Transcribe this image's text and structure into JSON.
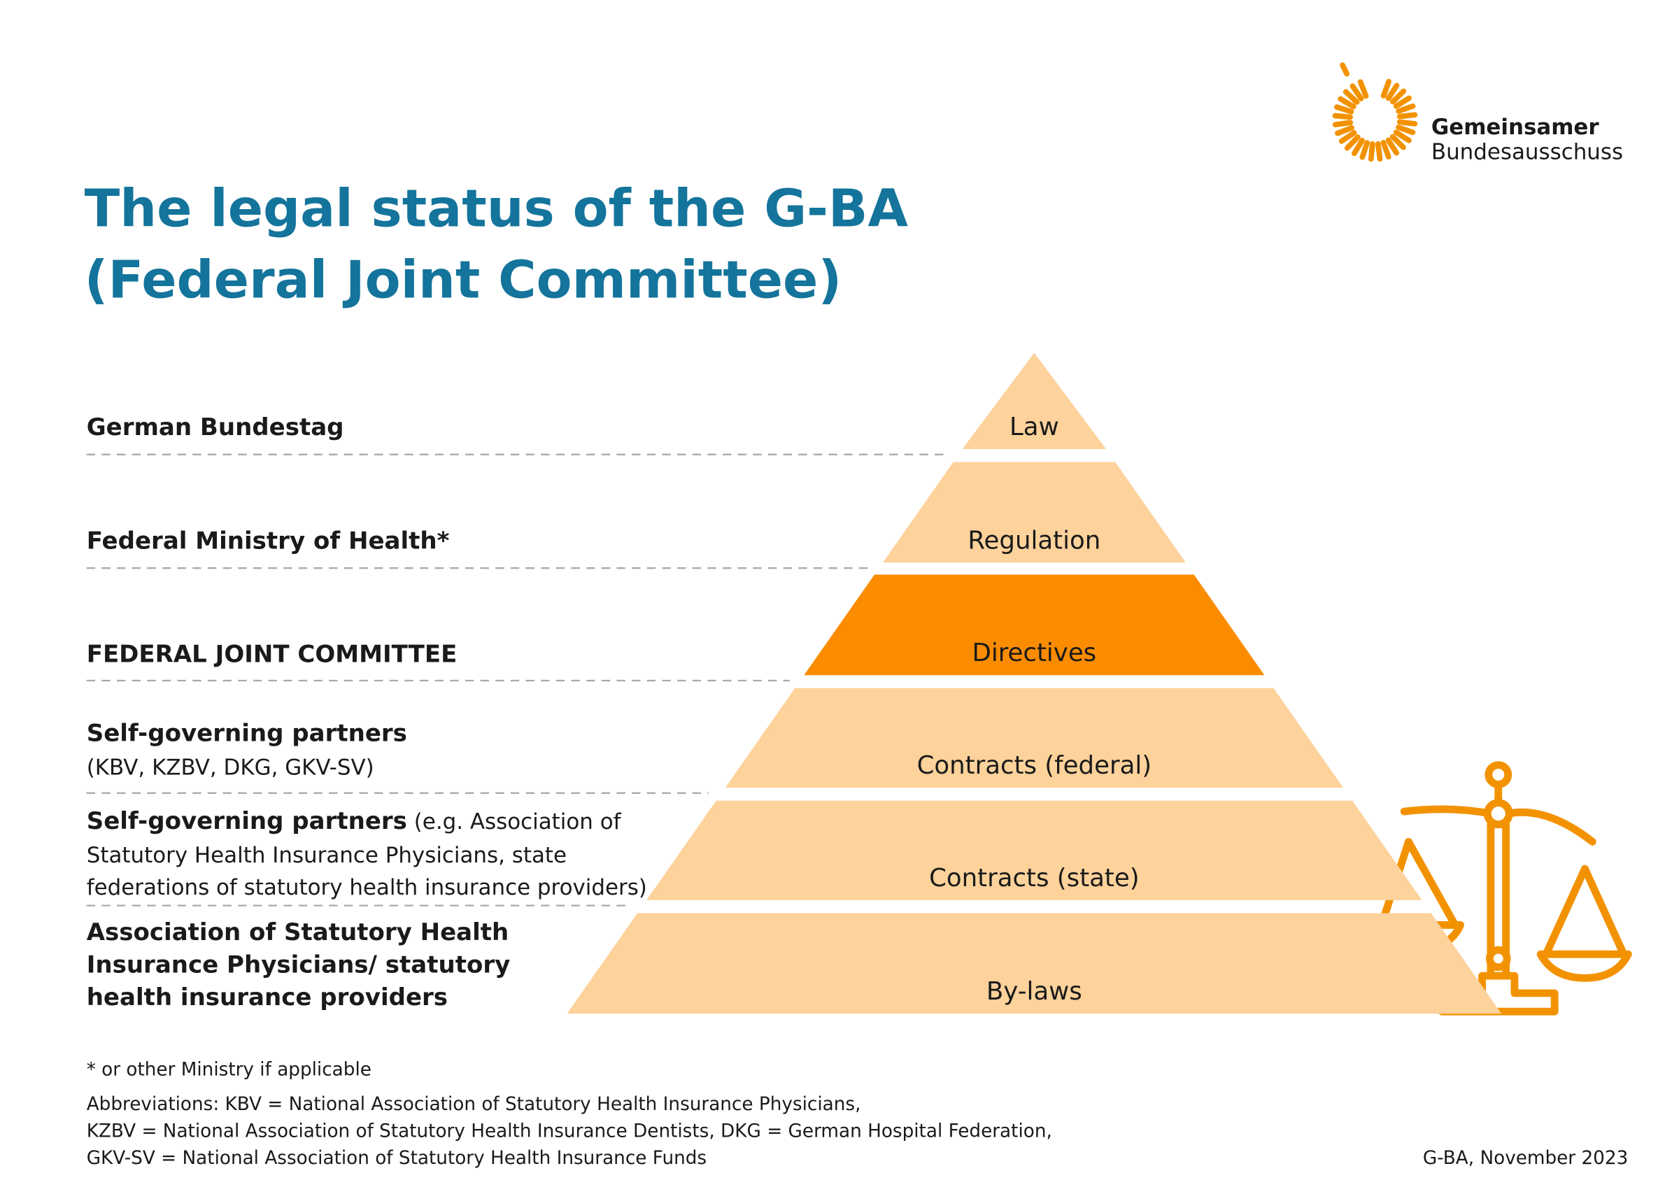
{
  "header": {
    "title_lines": [
      "The legal status of the G-BA",
      "(Federal Joint Committee)"
    ],
    "logo_lines": [
      "Gemeinsamer",
      "Bundesausschuss"
    ]
  },
  "levels": [
    {
      "label_lines": [
        "German Bundestag"
      ],
      "detail_lines": [],
      "tier": "Law"
    },
    {
      "label_lines": [
        "Federal Ministry of Health*"
      ],
      "detail_lines": [],
      "tier": "Regulation"
    },
    {
      "label_lines": [
        "FEDERAL JOINT COMMITTEE"
      ],
      "detail_lines": [],
      "tier": "Directives"
    },
    {
      "label_lines": [
        "Self-governing partners"
      ],
      "detail_lines": [
        "(KBV, KZBV, DKG, GKV-SV)"
      ],
      "tier": "Contracts (federal)"
    },
    {
      "label_lines": [
        "Self-governing partners"
      ],
      "detail_lines": [
        " (e.g. Association of",
        "Statutory Health Insurance Physicians, state",
        "federations of statutory health insurance providers)"
      ],
      "tier": "Contracts (state)"
    },
    {
      "label_lines": [
        "Association of Statutory Health",
        "Insurance Physicians/ statutory",
        "health insurance providers"
      ],
      "detail_lines": [],
      "tier": "By-laws"
    }
  ],
  "footnote": "* or other Ministry if applicable",
  "abbreviations": [
    "Abbreviations: KBV = National Association of Statutory Health Insurance Physicians,",
    "KZBV = National Association of Statutory Health Insurance Dentists, DKG = German Hospital Federation,",
    "GKV-SV = National Association of Statutory Health Insurance Funds"
  ],
  "credit": "G-BA, November 2023"
}
